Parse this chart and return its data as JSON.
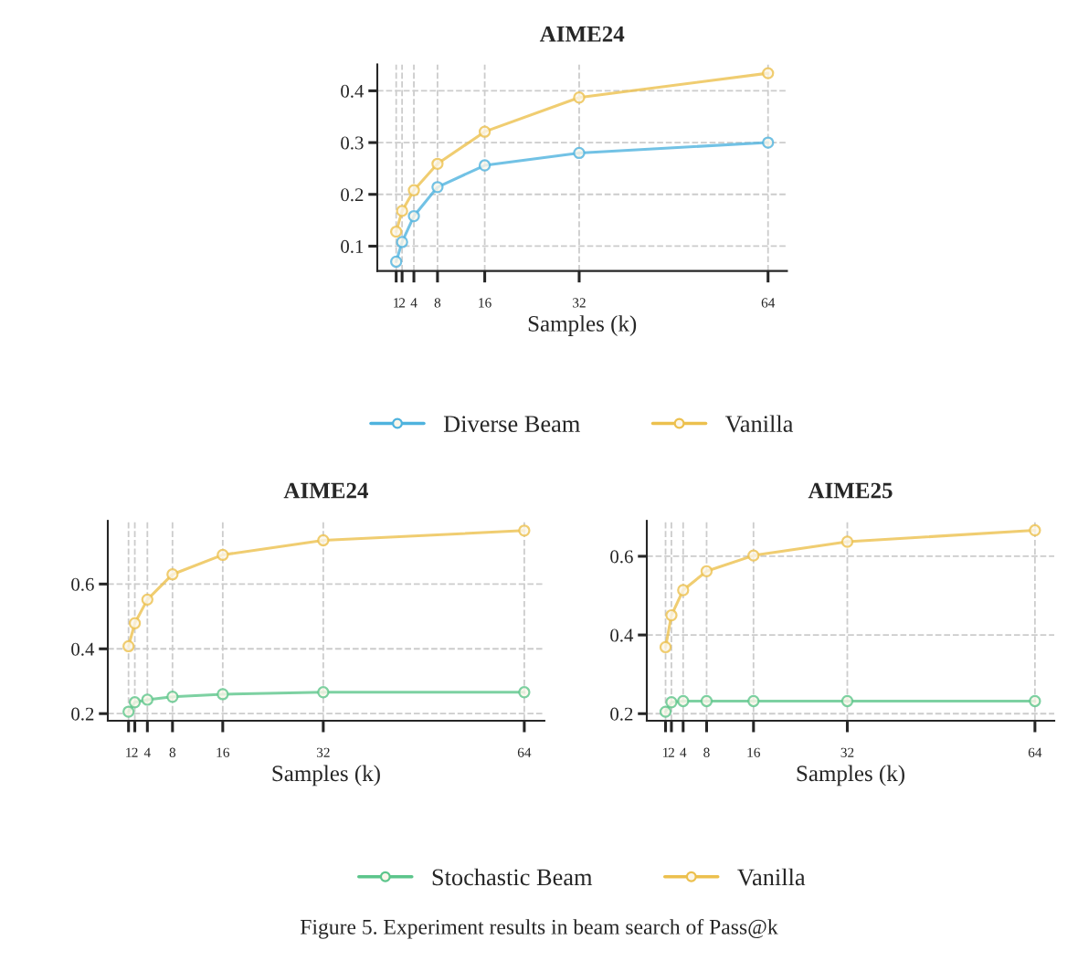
{
  "chart_data": [
    {
      "type": "line",
      "title": "AIME24",
      "xlabel": "Samples (k)",
      "x": [
        1,
        2,
        4,
        8,
        16,
        32,
        64
      ],
      "xlim": [
        -2.2,
        67.2
      ],
      "xticks": [
        1,
        2,
        4,
        8,
        16,
        32,
        64
      ],
      "ylim": [
        0.052,
        0.451
      ],
      "yticks": [
        0.1,
        0.2,
        0.3,
        0.4
      ],
      "grid": true,
      "marker": "circle",
      "line_style": "solid",
      "legend": "bottom",
      "series": [
        {
          "name": "Diverse Beam",
          "color": "#4fb3de",
          "values": [
            0.07,
            0.108,
            0.158,
            0.214,
            0.256,
            0.28,
            0.3
          ]
        },
        {
          "name": "Vanilla",
          "color": "#ecc04e",
          "values": [
            0.128,
            0.168,
            0.208,
            0.259,
            0.321,
            0.387,
            0.434
          ]
        }
      ]
    },
    {
      "type": "line",
      "title": "AIME24",
      "xlabel": "Samples (k)",
      "x": [
        1,
        2,
        4,
        8,
        16,
        32,
        64
      ],
      "xlim": [
        -2.3,
        67.2
      ],
      "xticks": [
        1,
        2,
        4,
        8,
        16,
        32,
        64
      ],
      "ylim": [
        0.178,
        0.795
      ],
      "yticks": [
        0.2,
        0.4,
        0.6
      ],
      "grid": true,
      "marker": "circle",
      "line_style": "solid",
      "series": [
        {
          "color": "#5cc58b",
          "values": [
            0.206,
            0.235,
            0.243,
            0.252,
            0.26,
            0.266,
            0.266
          ]
        },
        {
          "color": "#ecc04e",
          "values": [
            0.408,
            0.479,
            0.552,
            0.63,
            0.69,
            0.735,
            0.765
          ]
        }
      ]
    },
    {
      "type": "line",
      "title": "AIME25",
      "xlabel": "Samples (k)",
      "x": [
        1,
        2,
        4,
        8,
        16,
        32,
        64
      ],
      "xlim": [
        -2.2,
        67.3
      ],
      "xticks": [
        1,
        2,
        4,
        8,
        16,
        32,
        64
      ],
      "ylim": [
        0.182,
        0.69
      ],
      "yticks": [
        0.2,
        0.4,
        0.6
      ],
      "grid": true,
      "marker": "circle",
      "line_style": "solid",
      "legend": "bottom",
      "annotations": [
        "Figure 5. Experiment results in beam search of Pass@k"
      ],
      "series": [
        {
          "name": "Stochastic Beam",
          "color": "#5cc58b",
          "values": [
            0.205,
            0.229,
            0.232,
            0.232,
            0.232,
            0.232,
            0.232
          ]
        },
        {
          "name": "Vanilla",
          "color": "#ecc04e",
          "values": [
            0.369,
            0.45,
            0.514,
            0.562,
            0.602,
            0.637,
            0.666
          ]
        }
      ]
    }
  ]
}
